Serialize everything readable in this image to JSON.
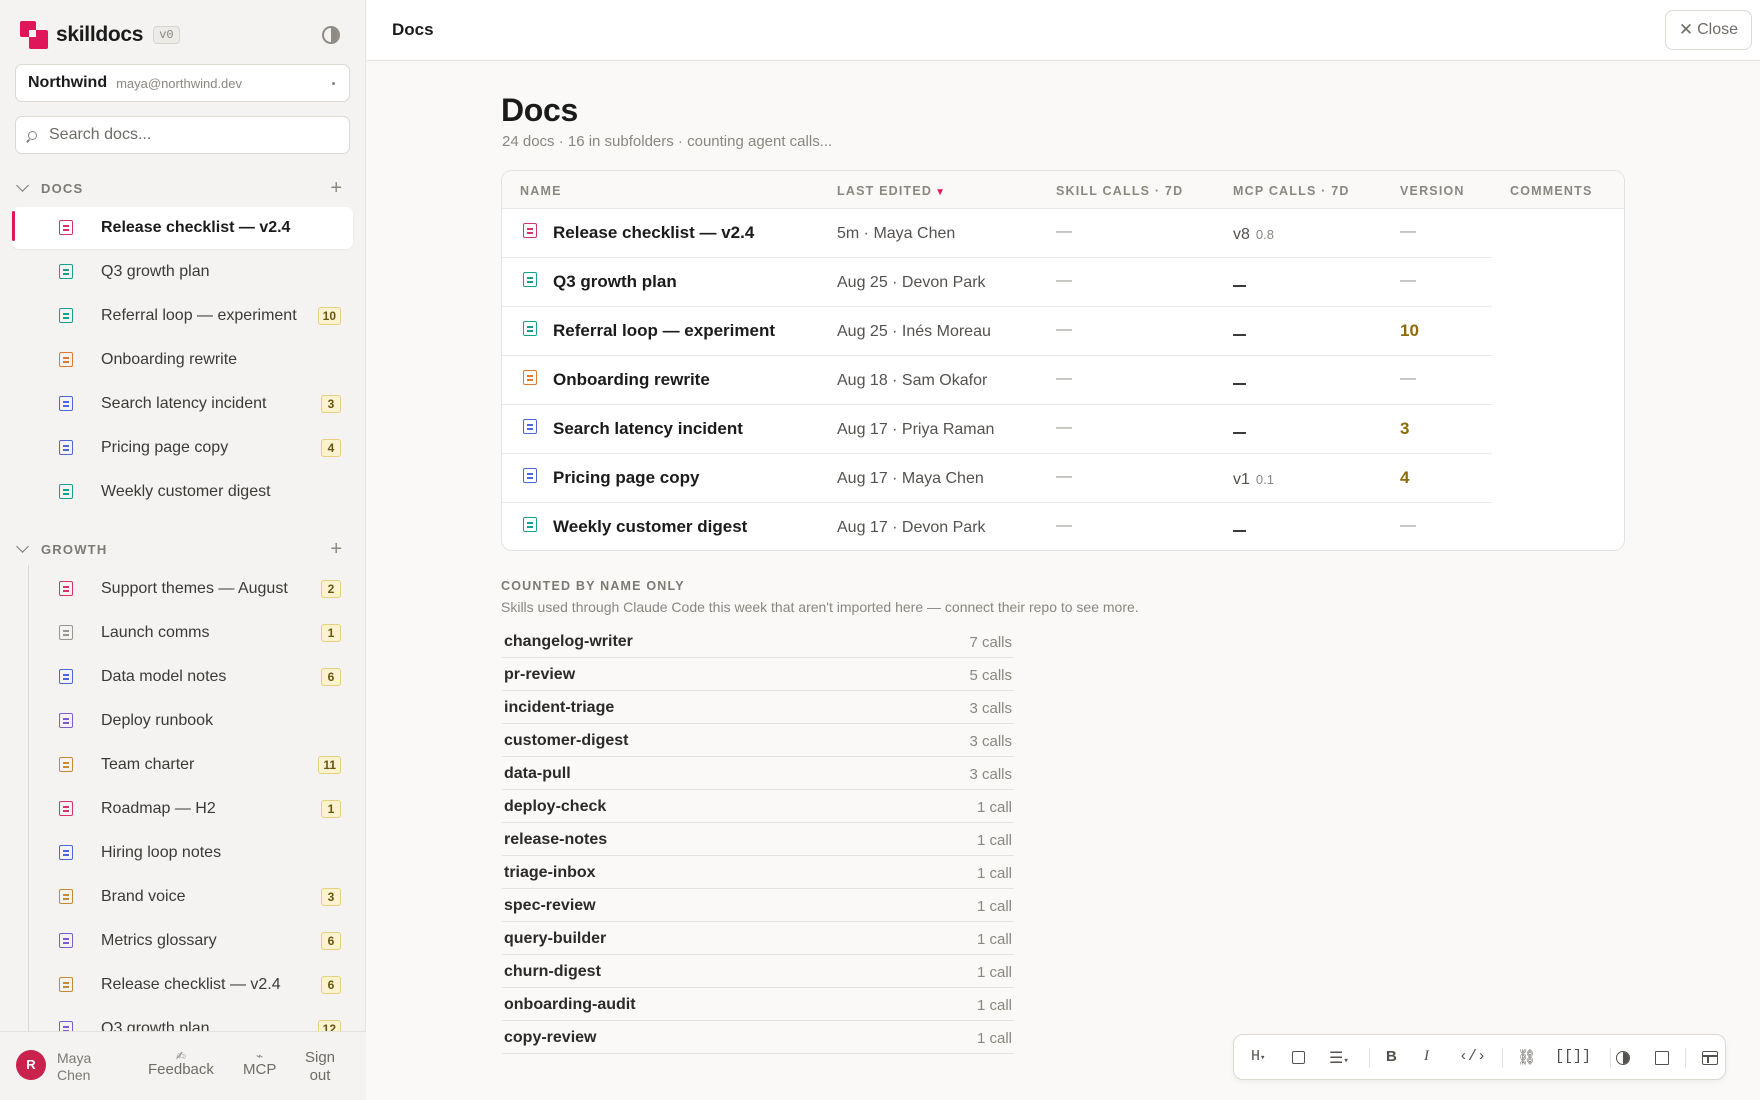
{
  "brand": {
    "name": "skilldocs",
    "version": "v0"
  },
  "workspace": {
    "name": "Northwind",
    "email": "maya@northwind.dev"
  },
  "search": {
    "placeholder": "Search docs..."
  },
  "sections": [
    {
      "label": "DOCS",
      "items": [
        {
          "label": "Release checklist — v2.4",
          "color": "#d6336c",
          "count": "",
          "active": true
        },
        {
          "label": "Q3 growth plan",
          "color": "#17a08c",
          "count": ""
        },
        {
          "label": "Referral loop — experiment",
          "color": "#17a08c",
          "count": "10"
        },
        {
          "label": "Onboarding rewrite",
          "color": "#e4792c",
          "count": ""
        },
        {
          "label": "Search latency incident",
          "color": "#4a68d9",
          "count": "3"
        },
        {
          "label": "Pricing page copy",
          "color": "#4a68d9",
          "count": "4"
        },
        {
          "label": "Weekly customer digest",
          "color": "#17a08c",
          "count": ""
        }
      ]
    },
    {
      "label": "GROWTH",
      "items": [
        {
          "label": "Support themes — August",
          "color": "#d6336c",
          "count": "2"
        },
        {
          "label": "Launch comms",
          "color": "#9a968f",
          "count": "1"
        },
        {
          "label": "Data model notes",
          "color": "#4a68d9",
          "count": "6"
        },
        {
          "label": "Deploy runbook",
          "color": "#7d5ad6",
          "count": ""
        },
        {
          "label": "Team charter",
          "color": "#c98a2d",
          "count": "11"
        },
        {
          "label": "Roadmap — H2",
          "color": "#d6336c",
          "count": "1"
        },
        {
          "label": "Hiring loop notes",
          "color": "#4a68d9",
          "count": ""
        },
        {
          "label": "Brand voice",
          "color": "#c98a2d",
          "count": "3"
        },
        {
          "label": "Metrics glossary",
          "color": "#7d5ad6",
          "count": "6"
        },
        {
          "label": "Release checklist — v2.4",
          "color": "#c98a2d",
          "count": "6"
        },
        {
          "label": "Q3 growth plan",
          "color": "#7d5ad6",
          "count": "12"
        }
      ]
    }
  ],
  "footer": {
    "avatar_initial": "R",
    "user_name": "Maya Chen",
    "feedback_label": "Feedback",
    "mcp_label": "MCP",
    "signout_label": "Sign out"
  },
  "topbar": {
    "title": "Docs",
    "close_label": "Close"
  },
  "page": {
    "title": "Docs",
    "subtitle": "24 docs · 16 in subfolders · counting agent calls..."
  },
  "table": {
    "headers": {
      "name": "NAME",
      "last_edited": "LAST EDITED",
      "skill_calls": "SKILL CALLS · 7D",
      "mcp_calls": "MCP CALLS · 7D",
      "version": "VERSION",
      "comments": "COMMENTS"
    },
    "sort_indicator": "▼",
    "rows": [
      {
        "name": "Release checklist — v2.4",
        "color": "#d6336c",
        "edited": "5m · Maya Chen",
        "skill": "—",
        "mcp_major": "v8",
        "mcp_minor": "0.8",
        "version": "—"
      },
      {
        "name": "Q3 growth plan",
        "color": "#17a08c",
        "edited": "Aug 25 · Devon Park",
        "skill": "—",
        "mcp_major": "",
        "mcp_minor": "",
        "version": "—"
      },
      {
        "name": "Referral loop — experiment",
        "color": "#17a08c",
        "edited": "Aug 25 · Inés Moreau",
        "skill": "—",
        "mcp_major": "",
        "mcp_minor": "",
        "version": "10"
      },
      {
        "name": "Onboarding rewrite",
        "color": "#e4792c",
        "edited": "Aug 18 · Sam Okafor",
        "skill": "—",
        "mcp_major": "",
        "mcp_minor": "",
        "version": "—"
      },
      {
        "name": "Search latency incident",
        "color": "#4a68d9",
        "edited": "Aug 17 · Priya Raman",
        "skill": "—",
        "mcp_major": "",
        "mcp_minor": "",
        "version": "3"
      },
      {
        "name": "Pricing page copy",
        "color": "#4a68d9",
        "edited": "Aug 17 · Maya Chen",
        "skill": "—",
        "mcp_major": "v1",
        "mcp_minor": "0.1",
        "version": "4"
      },
      {
        "name": "Weekly customer digest",
        "color": "#17a08c",
        "edited": "Aug 17 · Devon Park",
        "skill": "—",
        "mcp_major": "",
        "mcp_minor": "",
        "version": "—"
      }
    ]
  },
  "counted": {
    "heading": "COUNTED BY NAME ONLY",
    "subtitle": "Skills used through Claude Code this week that aren't imported here — connect their repo to see more.",
    "skills": [
      {
        "name": "changelog-writer",
        "calls": "7 calls"
      },
      {
        "name": "pr-review",
        "calls": "5 calls"
      },
      {
        "name": "incident-triage",
        "calls": "3 calls"
      },
      {
        "name": "customer-digest",
        "calls": "3 calls"
      },
      {
        "name": "data-pull",
        "calls": "3 calls"
      },
      {
        "name": "deploy-check",
        "calls": "1 call"
      },
      {
        "name": "release-notes",
        "calls": "1 call"
      },
      {
        "name": "triage-inbox",
        "calls": "1 call"
      },
      {
        "name": "spec-review",
        "calls": "1 call"
      },
      {
        "name": "query-builder",
        "calls": "1 call"
      },
      {
        "name": "churn-digest",
        "calls": "1 call"
      },
      {
        "name": "onboarding-audit",
        "calls": "1 call"
      },
      {
        "name": "copy-review",
        "calls": "1 call"
      }
    ]
  },
  "toolbar": {
    "heading": "H",
    "bold": "B",
    "italic": "I",
    "code": "‹/›",
    "link": "🔗",
    "wikilink": "[[]]"
  },
  "accent_color": "#e0165a"
}
